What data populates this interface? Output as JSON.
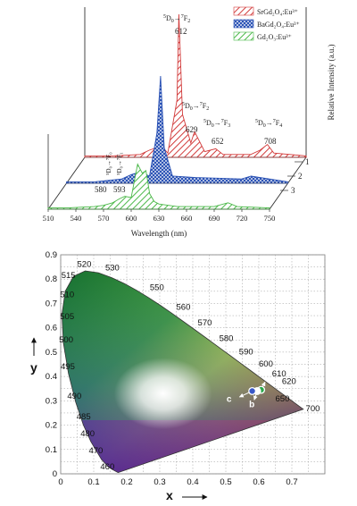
{
  "chart_data": [
    {
      "type": "line",
      "xlabel": "Wavelength (nm)",
      "ylabel": "Relative Intensity (a.u.)",
      "xticks": [
        510,
        540,
        570,
        600,
        630,
        660,
        690,
        720,
        750
      ],
      "xlim": [
        510,
        750
      ],
      "depth_labels": [
        "1",
        "2",
        "3"
      ],
      "legend": [
        {
          "name_html": "SrGd₂O₄:Eu³⁺",
          "color": "#d23b3b",
          "pattern": "hatch-red"
        },
        {
          "name_html": "BaGd₂O₄:Eu³⁺",
          "color": "#2850b4",
          "pattern": "hatch-blue"
        },
        {
          "name_html": "Gd₂O₃:Eu³⁺",
          "color": "#4ab848",
          "pattern": "hatch-green"
        }
      ],
      "series": [
        {
          "name": "SrGd₂O₄:Eu³⁺",
          "color": "#d23b3b",
          "x": [
            510,
            540,
            570,
            580,
            593,
            600,
            610,
            612,
            616,
            625,
            629,
            640,
            652,
            660,
            690,
            700,
            708,
            715,
            750
          ],
          "y": [
            0.01,
            0.01,
            0.02,
            0.05,
            0.08,
            0.03,
            0.4,
            1.0,
            0.3,
            0.1,
            0.18,
            0.04,
            0.06,
            0.02,
            0.02,
            0.05,
            0.09,
            0.03,
            0.01
          ]
        },
        {
          "name": "BaGd₂O₄:Eu³⁺",
          "color": "#2850b4",
          "x": [
            510,
            540,
            570,
            580,
            590,
            600,
            608,
            612,
            616,
            625,
            650,
            700,
            710,
            750
          ],
          "y": [
            0.01,
            0.01,
            0.03,
            0.06,
            0.08,
            0.05,
            0.35,
            0.75,
            0.25,
            0.05,
            0.04,
            0.03,
            0.05,
            0.01
          ]
        },
        {
          "name": "Gd₂O₃:Eu³⁺",
          "color": "#4ab848",
          "x": [
            510,
            530,
            560,
            570,
            580,
            587,
            593,
            600,
            607,
            612,
            616,
            620,
            625,
            630,
            650,
            690,
            705,
            715,
            750
          ],
          "y": [
            0.01,
            0.01,
            0.02,
            0.03,
            0.05,
            0.08,
            0.1,
            0.09,
            0.35,
            0.28,
            0.3,
            0.12,
            0.06,
            0.04,
            0.02,
            0.02,
            0.05,
            0.02,
            0.01
          ]
        }
      ],
      "annotations": {
        "t1_pre": "5",
        "t1_d": "D",
        "t1_sub": "0",
        "t1_arrow": "→",
        "t1_pre2": "7",
        "t1_f": "F",
        "t1_sub2": "2",
        "p612": "612",
        "t2_pre": "5",
        "t2_d": "D",
        "t2_sub": "0",
        "t2_arrow": "→",
        "t2_pre2": "7",
        "t2_f": "F",
        "t2_sub2": "2",
        "p629": "629",
        "t3_pre": "5",
        "t3_d": "D",
        "t3_sub": "0",
        "t3_arrow": "→",
        "t3_pre2": "7",
        "t3_f": "F",
        "t3_sub2": "3",
        "p652": "652",
        "t4_pre": "5",
        "t4_d": "D",
        "t4_sub": "0",
        "t4_arrow": "→",
        "t4_pre2": "7",
        "t4_f": "F",
        "t4_sub2": "4",
        "p708": "708",
        "v1": "⁵D₀→⁷F₀",
        "v2": "⁵D₀→⁷F₁",
        "p580": "580",
        "p593": "593"
      }
    },
    {
      "type": "scatter",
      "xlabel": "x",
      "ylabel": "y",
      "xlim": [
        0,
        0.8
      ],
      "ylim": [
        0,
        0.9
      ],
      "xticks": [
        0,
        0.1,
        0.2,
        0.3,
        0.4,
        0.5,
        0.6,
        0.7
      ],
      "yticks": [
        0,
        0.1,
        0.2,
        0.3,
        0.4,
        0.5,
        0.6,
        0.7,
        0.8,
        0.9
      ],
      "grid": true,
      "wavelength_labels": [
        "460",
        "470",
        "480",
        "485",
        "490",
        "495",
        "500",
        "505",
        "510",
        "515",
        "520",
        "530",
        "550",
        "560",
        "570",
        "580",
        "590",
        "600",
        "610",
        "620",
        "650",
        "700"
      ],
      "points": [
        {
          "label": "a",
          "x": 0.607,
          "y": 0.345,
          "color": "#2aa84a"
        },
        {
          "label": "b",
          "x": 0.595,
          "y": 0.34,
          "color": "#ffffff"
        },
        {
          "label": "c",
          "x": 0.58,
          "y": 0.34,
          "color": "#3a58c8"
        }
      ]
    }
  ]
}
